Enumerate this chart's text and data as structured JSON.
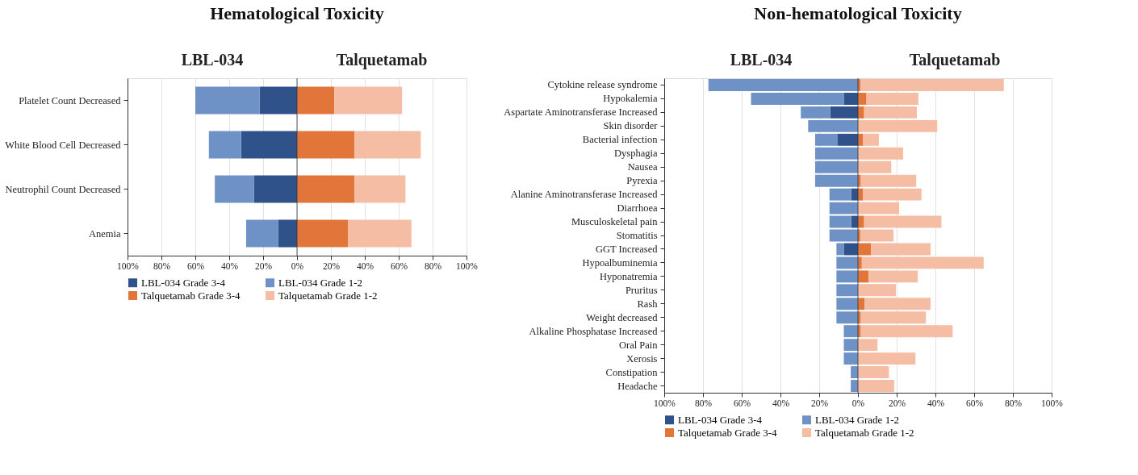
{
  "chart_data": [
    {
      "type": "bar",
      "title": "Hematological Toxicity",
      "orientation": "horizontal",
      "stacked": true,
      "annotations": [
        "LBL-034",
        "Talquetamab"
      ],
      "categories": [
        "Platelet Count Decreased",
        "White Blood Cell Decreased",
        "Neutrophil Count Decreased",
        "Anemia"
      ],
      "series": [
        {
          "name": "LBL-034 Grade 3-4",
          "color": "#2e5289",
          "values": [
            -22,
            -33,
            -25.5,
            -11
          ]
        },
        {
          "name": "LBL-034 Grade 1-2",
          "color": "#6f92c6",
          "values": [
            -38,
            -19,
            -23,
            -19
          ]
        },
        {
          "name": "Talquetamab Grade 3-4",
          "color": "#e2763a",
          "values": [
            22,
            34,
            34,
            30
          ]
        },
        {
          "name": "Talquetamab Grade 1-2",
          "color": "#f5bda3",
          "values": [
            40,
            39,
            30,
            37.5
          ]
        }
      ],
      "xlim": [
        -100,
        100
      ],
      "xticks": [
        {
          "value": -100,
          "label": "100%"
        },
        {
          "value": -80,
          "label": "80%"
        },
        {
          "value": -60,
          "label": "60%"
        },
        {
          "value": -40,
          "label": "40%"
        },
        {
          "value": -20,
          "label": "20%"
        },
        {
          "value": 0,
          "label": "0%"
        },
        {
          "value": 20,
          "label": "20%"
        },
        {
          "value": 40,
          "label": "40%"
        },
        {
          "value": 60,
          "label": "60%"
        },
        {
          "value": 80,
          "label": "80%"
        },
        {
          "value": 100,
          "label": "100%"
        }
      ],
      "ref_lines": [
        {
          "axis": "x",
          "value": 0,
          "color": "#333333"
        }
      ],
      "grid": "x",
      "legend": "bottom"
    },
    {
      "type": "bar",
      "title": "Non-hematological Toxicity",
      "orientation": "horizontal",
      "stacked": true,
      "annotations": [
        "LBL-034",
        "Talquetamab"
      ],
      "categories": [
        "Cytokine release syndrome",
        "Hypokalemia",
        "Aspartate Aminotransferase Increased",
        "Skin disorder",
        "Bacterial infection",
        "Dysphagia",
        "Nausea",
        "Pyrexia",
        "Alanine Aminotransferase Increased",
        "Diarrhoea",
        "Musculoskeletal pain",
        "Stomatitis",
        "GGT Increased",
        "Hypoalbuminemia",
        "Hyponatremia",
        "Pruritus",
        "Rash",
        "Weight decreased",
        "Alkaline Phosphatase Increased",
        "Oral Pain",
        "Xerosis",
        "Constipation",
        "Headache"
      ],
      "series": [
        {
          "name": "LBL-034 Grade 3-4",
          "color": "#2e5289",
          "values": [
            0,
            -7.1,
            -14.3,
            0,
            -10.7,
            0,
            0,
            0,
            -3.5,
            0,
            -3.5,
            0,
            -7.1,
            0,
            0,
            0,
            0,
            0,
            0,
            0,
            0,
            0,
            0
          ]
        },
        {
          "name": "LBL-034 Grade 1-2",
          "color": "#6f92c6",
          "values": [
            -77.2,
            -48.1,
            -15.2,
            -25.7,
            -11.4,
            -22.1,
            -22.1,
            -22.1,
            -11.2,
            -14.7,
            -11.2,
            -14.7,
            -4,
            -11.1,
            -11.1,
            -11.1,
            -11.1,
            -11.1,
            -7.3,
            -7.3,
            -7.3,
            -3.7,
            -3.7
          ]
        },
        {
          "name": "Talquetamab Grade 3-4",
          "color": "#e2763a",
          "values": [
            1.3,
            4.4,
            3.2,
            0,
            2.5,
            0,
            0,
            1.5,
            2.5,
            0,
            3.2,
            1.2,
            6.7,
            2,
            5.5,
            0,
            3.5,
            1.5,
            1.5,
            0,
            0,
            0,
            0
          ]
        },
        {
          "name": "Talquetamab Grade 1-2",
          "color": "#f5bda3",
          "values": [
            74,
            26.8,
            27.2,
            40.9,
            8.3,
            23.3,
            17.2,
            28.6,
            30.3,
            21.3,
            39.9,
            17.2,
            30.8,
            62.9,
            25.4,
            19.6,
            34,
            33.6,
            47.4,
            10.1,
            29.7,
            16,
            18.7
          ]
        }
      ],
      "xlim": [
        -100,
        100
      ],
      "xticks": [
        {
          "value": -100,
          "label": "100%"
        },
        {
          "value": -80,
          "label": "80%"
        },
        {
          "value": -60,
          "label": "60%"
        },
        {
          "value": -40,
          "label": "40%"
        },
        {
          "value": -20,
          "label": "20%"
        },
        {
          "value": 0,
          "label": "0%"
        },
        {
          "value": 20,
          "label": "20%"
        },
        {
          "value": 40,
          "label": "40%"
        },
        {
          "value": 60,
          "label": "60%"
        },
        {
          "value": 80,
          "label": "80%"
        },
        {
          "value": 100,
          "label": "100%"
        }
      ],
      "ref_lines": [
        {
          "axis": "x",
          "value": 0,
          "color": "#333333"
        }
      ],
      "grid": "x",
      "legend": "bottom"
    }
  ]
}
